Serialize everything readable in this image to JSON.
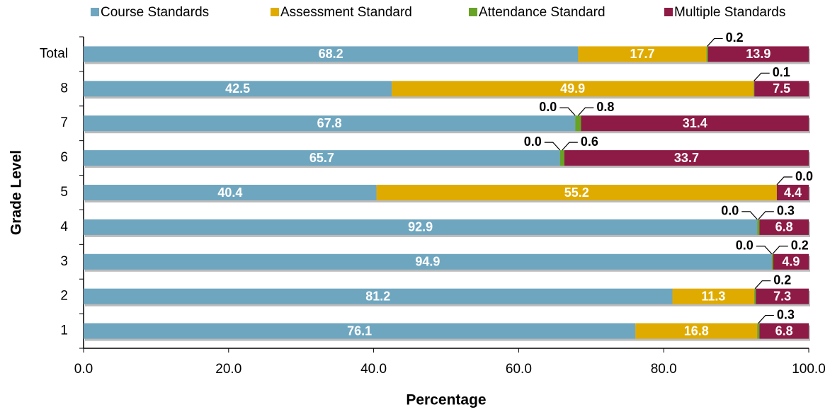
{
  "chart_data": {
    "type": "stacked-bar-horizontal",
    "xlabel": "Percentage",
    "ylabel": "Grade Level",
    "categories": [
      "Total",
      "8",
      "7",
      "6",
      "5",
      "4",
      "3",
      "2",
      "1"
    ],
    "series": [
      {
        "name": "Course Standards",
        "color": "#6fa6bf",
        "values": [
          68.2,
          42.5,
          67.8,
          65.7,
          40.4,
          92.9,
          94.9,
          81.2,
          76.1
        ],
        "value_labels": [
          "68.2",
          "42.5",
          "67.8",
          "65.7",
          "40.4",
          "92.9",
          "94.9",
          "81.2",
          "76.1"
        ]
      },
      {
        "name": "Assessment Standard",
        "color": "#e0ab00",
        "values": [
          17.7,
          49.9,
          0,
          0,
          55.2,
          0,
          0,
          11.3,
          16.8
        ],
        "value_labels": [
          "17.7",
          "49.9",
          "0.0",
          "0.0",
          "55.2",
          "0.0",
          "0.0",
          "11.3",
          "16.8"
        ]
      },
      {
        "name": "Attendance Standard",
        "color": "#67a325",
        "values": [
          0.2,
          0.1,
          0.8,
          0.6,
          0,
          0.3,
          0.2,
          0.2,
          0.3
        ],
        "value_labels": [
          "0.2",
          "0.1",
          "0.8",
          "0.6",
          "0.0",
          "0.3",
          "0.2",
          "0.2",
          "0.3"
        ]
      },
      {
        "name": "Multiple Standards",
        "color": "#8d1b45",
        "values": [
          13.9,
          7.5,
          31.4,
          33.7,
          4.4,
          6.8,
          4.9,
          7.3,
          6.8
        ],
        "value_labels": [
          "13.9",
          "7.5",
          "31.4",
          "33.7",
          "4.4",
          "6.8",
          "4.9",
          "7.3",
          "6.8"
        ]
      }
    ],
    "xlim": [
      0,
      100
    ],
    "xticks": [
      {
        "value": 0,
        "label": "0.0"
      },
      {
        "value": 20,
        "label": "20.0"
      },
      {
        "value": 40,
        "label": "40.0"
      },
      {
        "value": 60,
        "label": "60.0"
      },
      {
        "value": 80,
        "label": "80.0"
      },
      {
        "value": 100,
        "label": "100.0"
      }
    ],
    "legend": "top"
  }
}
